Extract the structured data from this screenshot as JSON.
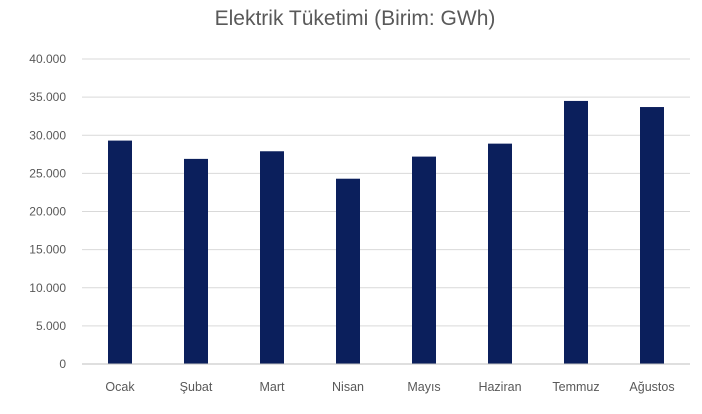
{
  "chart_data": {
    "type": "bar",
    "title": "Elektrik Tüketimi (Birim: GWh)",
    "xlabel": "",
    "ylabel": "",
    "categories": [
      "Ocak",
      "Şubat",
      "Mart",
      "Nisan",
      "Mayıs",
      "Haziran",
      "Temmuz",
      "Ağustos"
    ],
    "values": [
      29300,
      26900,
      27900,
      24300,
      27200,
      28900,
      34500,
      33700
    ],
    "ylim": [
      0,
      40000
    ],
    "yticks": [
      0,
      5000,
      10000,
      15000,
      20000,
      25000,
      30000,
      35000,
      40000
    ],
    "ytick_labels": [
      "0",
      "5.000",
      "10.000",
      "15.000",
      "20.000",
      "25.000",
      "30.000",
      "35.000",
      "40.000"
    ],
    "grid": true,
    "legend": "none",
    "bar_color": "#0b1f5c",
    "grid_color": "#d9d9d9",
    "text_color": "#595959"
  }
}
